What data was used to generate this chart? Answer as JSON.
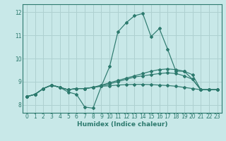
{
  "xlabel": "Humidex (Indice chaleur)",
  "xlim": [
    -0.5,
    23.5
  ],
  "ylim": [
    7.65,
    12.35
  ],
  "yticks": [
    8,
    9,
    10,
    11,
    12
  ],
  "xticks": [
    0,
    1,
    2,
    3,
    4,
    5,
    6,
    7,
    8,
    9,
    10,
    11,
    12,
    13,
    14,
    15,
    16,
    17,
    18,
    19,
    20,
    21,
    22,
    23
  ],
  "bg_color": "#c8e8e8",
  "grid_color": "#aed0d0",
  "line_color": "#2d7a6e",
  "lines": [
    [
      8.35,
      8.45,
      8.7,
      8.85,
      8.75,
      8.55,
      8.45,
      7.9,
      7.85,
      8.8,
      9.65,
      11.15,
      11.55,
      11.85,
      11.95,
      10.95,
      11.3,
      10.4,
      9.45,
      9.45,
      9.1,
      8.65,
      8.65,
      8.65
    ],
    [
      8.35,
      8.45,
      8.7,
      8.85,
      8.75,
      8.65,
      8.7,
      8.7,
      8.75,
      8.8,
      8.82,
      8.85,
      8.87,
      8.88,
      8.88,
      8.87,
      8.85,
      8.83,
      8.8,
      8.75,
      8.7,
      8.65,
      8.65,
      8.65
    ],
    [
      8.35,
      8.45,
      8.7,
      8.85,
      8.75,
      8.65,
      8.7,
      8.7,
      8.75,
      8.82,
      8.9,
      9.0,
      9.1,
      9.2,
      9.25,
      9.3,
      9.35,
      9.38,
      9.35,
      9.25,
      9.1,
      8.65,
      8.65,
      8.65
    ],
    [
      8.35,
      8.45,
      8.7,
      8.85,
      8.75,
      8.65,
      8.7,
      8.7,
      8.75,
      8.85,
      8.95,
      9.05,
      9.15,
      9.25,
      9.35,
      9.45,
      9.52,
      9.55,
      9.52,
      9.45,
      9.3,
      8.65,
      8.65,
      8.65
    ]
  ]
}
